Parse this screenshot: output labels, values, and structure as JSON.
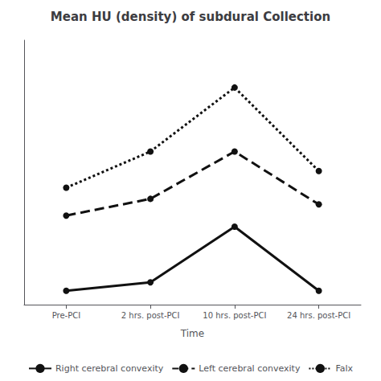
{
  "chart_data": {
    "type": "line",
    "title": "Mean HU (density) of subdural Collection",
    "xlabel": "Time",
    "categories": [
      "Pre-PCI",
      "2 hrs. post-PCI",
      "10 hrs. post-PCI",
      "24 hrs. post-PCI"
    ],
    "series": [
      {
        "name": "Right cerebral convexity",
        "color": "#111111",
        "values": [
          5,
          8,
          28,
          5
        ],
        "line_style": "solid",
        "marker": "circle"
      },
      {
        "name": "Left cerebral convexity",
        "color": "#111111",
        "values": [
          32,
          38,
          55,
          36
        ],
        "line_style": "dashed",
        "marker": "circle"
      },
      {
        "name": "Falx",
        "color": "#111111",
        "values": [
          42,
          55,
          78,
          48
        ],
        "line_style": "dotted",
        "marker": "circle"
      }
    ],
    "ylim": [
      0,
      95
    ],
    "yticks": [],
    "tick_labels": "x",
    "grid": false,
    "legend": "bottom"
  }
}
